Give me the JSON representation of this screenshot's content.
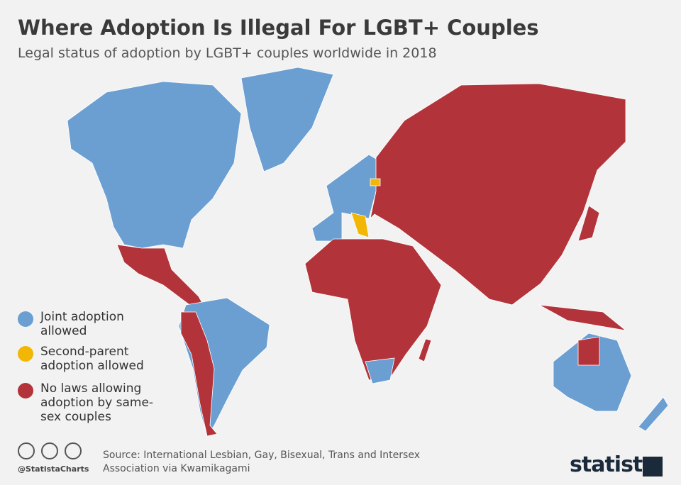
{
  "header": {
    "title": "Where Adoption Is Illegal For LGBT+ Couples",
    "subtitle": "Legal status of adoption by LGBT+ couples worldwide in 2018"
  },
  "legend": [
    {
      "label": "Joint adoption allowed",
      "color": "#6b9fd1"
    },
    {
      "label": "Second-parent adoption allowed",
      "color": "#f2b705"
    },
    {
      "label": "No laws allowing adoption by same-sex couples",
      "color": "#b3333a"
    }
  ],
  "footer": {
    "handle": "@StatistaCharts",
    "source": "Source: International Lesbian, Gay, Bisexual, Trans and Intersex Association via Kwamikagami",
    "brand": "statista"
  }
}
